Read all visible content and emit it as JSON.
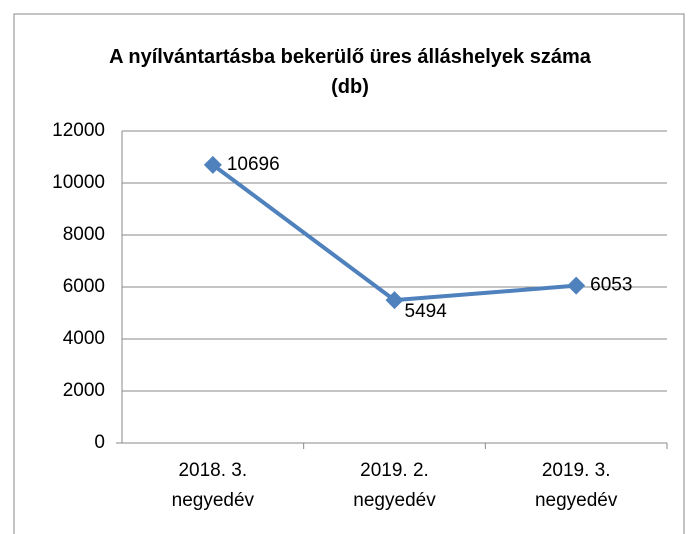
{
  "chart_data": {
    "type": "line",
    "title": "A nyílvántartásba bekerülő üres álláshelyek száma (db)",
    "categories": [
      "2018. 3. negyedév",
      "2019. 2. negyedév",
      "2019. 3. negyedév"
    ],
    "series": [
      {
        "name": "db",
        "color": "#4f81bd",
        "values": [
          10696,
          5494,
          6053
        ]
      }
    ],
    "ylim": [
      0,
      12000
    ],
    "yticks": [
      0,
      2000,
      4000,
      6000,
      8000,
      10000,
      12000
    ],
    "grid": true
  }
}
